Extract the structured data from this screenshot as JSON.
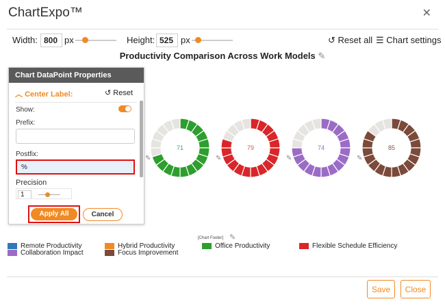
{
  "app": {
    "logo": "ChartExpo™",
    "close_icon": "close-icon"
  },
  "toolbar": {
    "width_label": "Width:",
    "width_value": "800",
    "width_unit": "px",
    "height_label": "Height:",
    "height_value": "525",
    "height_unit": "px",
    "reset_all": "Reset all",
    "chart_settings": "Chart settings"
  },
  "chart_title": "Productivity Comparison Across Work Models",
  "panel": {
    "title": "Chart DataPoint Properties",
    "section": "Center Label:",
    "reset": "Reset",
    "show_label": "Show:",
    "show_on": true,
    "prefix_label": "Prefix:",
    "prefix_value": "",
    "postfix_label": "Postfix:",
    "postfix_value": "%",
    "precision_label": "Precision",
    "precision_value": "1",
    "apply_all": "Apply All",
    "cancel": "Cancel"
  },
  "chart_data": {
    "type": "donut",
    "segments_per_ring": 20,
    "track_color": "#e6e4e1",
    "series": [
      {
        "value": 71,
        "color": "#2e9e2e",
        "label_color": "#3aa0a0"
      },
      {
        "value": 79,
        "color": "#d9262a",
        "label_color": "#e05050"
      },
      {
        "value": 74,
        "color": "#9b6cc6",
        "label_color": "#7a7ab0"
      },
      {
        "value": 85,
        "color": "#7b4a3a",
        "label_color": "#7b5a4a"
      }
    ]
  },
  "footer_label": "[Chart Footer]",
  "legend": [
    {
      "label": "Remote Productivity",
      "color": "#2f79b9"
    },
    {
      "label": "Collaboration Impact",
      "color": "#9b6cc6"
    },
    {
      "label": "Hybrid Productivity",
      "color": "#f08a24"
    },
    {
      "label": "Focus Improvement",
      "color": "#7b4a3a"
    },
    {
      "label": "Office Productivity",
      "color": "#2e9e2e"
    },
    {
      "label": "Flexible Schedule Efficiency",
      "color": "#d9262a"
    }
  ],
  "footer": {
    "save": "Save",
    "close": "Close"
  }
}
